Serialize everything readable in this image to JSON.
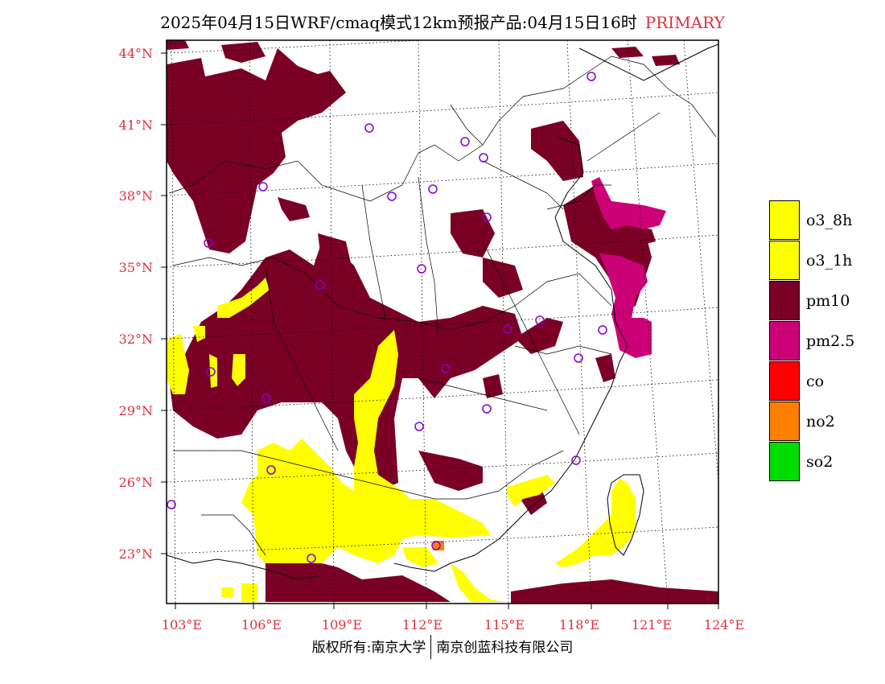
{
  "title": {
    "main": "2025年04月15日WRF/cmaq模式12km预报产品:04月15日16时",
    "tag": "PRIMARY"
  },
  "axes": {
    "lat_labels": [
      "44°N",
      "41°N",
      "38°N",
      "35°N",
      "32°N",
      "29°N",
      "26°N",
      "23°N"
    ],
    "lon_labels": [
      "103°E",
      "106°E",
      "109°E",
      "112°E",
      "115°E",
      "118°E",
      "121°E",
      "124°E"
    ]
  },
  "legend": [
    {
      "label": "o3_8h",
      "color": "#ffff00"
    },
    {
      "label": "o3_1h",
      "color": "#ffff00"
    },
    {
      "label": "pm10",
      "color": "#7a0026"
    },
    {
      "label": "pm2.5",
      "color": "#cc0077"
    },
    {
      "label": "co",
      "color": "#ff0000"
    },
    {
      "label": "no2",
      "color": "#ff8000"
    },
    {
      "label": "so2",
      "color": "#00dd00"
    }
  ],
  "footer": {
    "left": "版权所有:南京大学",
    "right": "南京创蓝科技有限公司"
  },
  "colors": {
    "pm10": "#7a0026",
    "pm25": "#cc0077",
    "o3": "#ffff00",
    "no2": "#ff8000",
    "axis_label": "#e0303a",
    "station": "#8800cc"
  }
}
